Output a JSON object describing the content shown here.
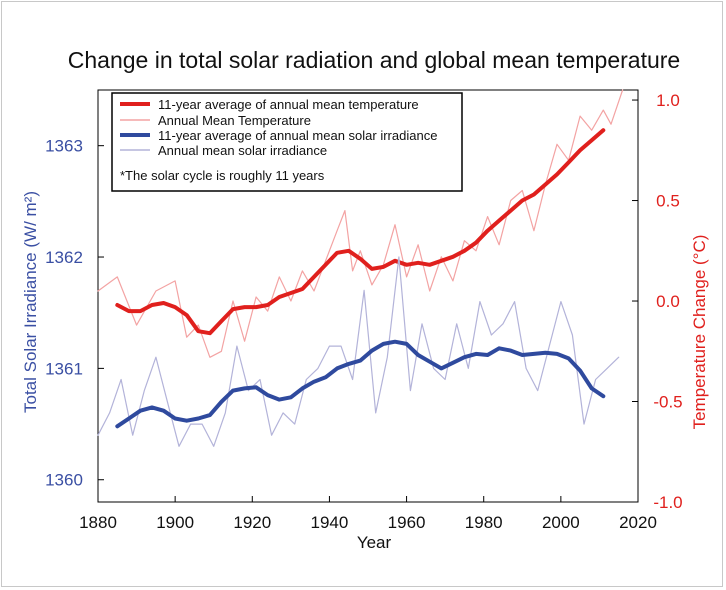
{
  "chart_data": {
    "type": "line",
    "title": "Change in total solar radiation and global mean temperature",
    "xlabel": "Year",
    "ylabel_left": "Total Solar Irradiance (W/ m²)",
    "ylabel_right": "Temperature Change (°C)",
    "xlim": [
      1880,
      2020
    ],
    "ylim_left": [
      1359.8,
      1363.5
    ],
    "ylim_right": [
      -1.0,
      1.05
    ],
    "x_ticks": [
      "1880",
      "1900",
      "1920",
      "1940",
      "1960",
      "1980",
      "2000",
      "2020"
    ],
    "left_ticks": [
      "1360",
      "1361",
      "1362",
      "1363"
    ],
    "right_ticks": [
      "-1.0",
      "-0.5",
      "0.0",
      "0.5",
      "1.0"
    ],
    "legend": {
      "position": "top-left",
      "entries": [
        {
          "label": "11-year average of annual mean temperature",
          "color": "#e0201d"
        },
        {
          "label": "Annual Mean Temperature",
          "color": "#f3a3a3"
        },
        {
          "label": "11-year average of annual mean solar irradiance",
          "color": "#2f4a9e"
        },
        {
          "label": "Annual mean solar irradiance",
          "color": "#b3b3d9"
        }
      ],
      "note": "*The solar cycle is roughly 11 years"
    },
    "series": [
      {
        "name": "Annual Mean Temperature",
        "axis": "right",
        "color": "#f3a3a3",
        "x": [
          1880,
          1885,
          1890,
          1895,
          1900,
          1903,
          1906,
          1909,
          1912,
          1915,
          1918,
          1921,
          1924,
          1927,
          1930,
          1933,
          1936,
          1939,
          1942,
          1944,
          1946,
          1948,
          1951,
          1954,
          1957,
          1960,
          1963,
          1966,
          1969,
          1972,
          1975,
          1978,
          1981,
          1984,
          1987,
          1990,
          1993,
          1996,
          1999,
          2002,
          2005,
          2008,
          2011,
          2013,
          2016
        ],
        "y": [
          0.05,
          0.12,
          -0.12,
          0.05,
          0.1,
          -0.18,
          -0.12,
          -0.28,
          -0.25,
          0.0,
          -0.2,
          0.02,
          -0.05,
          0.12,
          0.0,
          0.15,
          0.05,
          0.2,
          0.35,
          0.45,
          0.15,
          0.25,
          0.08,
          0.18,
          0.38,
          0.12,
          0.28,
          0.05,
          0.22,
          0.1,
          0.3,
          0.25,
          0.42,
          0.28,
          0.5,
          0.55,
          0.35,
          0.58,
          0.78,
          0.7,
          0.92,
          0.85,
          0.95,
          0.88,
          1.05
        ]
      },
      {
        "name": "11-year average of annual mean temperature",
        "axis": "right",
        "color": "#e0201d",
        "x": [
          1885,
          1888,
          1891,
          1894,
          1897,
          1900,
          1903,
          1906,
          1909,
          1912,
          1915,
          1918,
          1921,
          1924,
          1927,
          1930,
          1933,
          1936,
          1939,
          1942,
          1945,
          1948,
          1951,
          1954,
          1957,
          1960,
          1963,
          1966,
          1969,
          1972,
          1975,
          1978,
          1981,
          1984,
          1987,
          1990,
          1993,
          1996,
          1999,
          2002,
          2005,
          2008,
          2011
        ],
        "y": [
          -0.02,
          -0.05,
          -0.05,
          -0.02,
          -0.01,
          -0.03,
          -0.07,
          -0.15,
          -0.16,
          -0.1,
          -0.04,
          -0.03,
          -0.03,
          -0.02,
          0.02,
          0.04,
          0.06,
          0.12,
          0.18,
          0.24,
          0.25,
          0.21,
          0.16,
          0.17,
          0.2,
          0.18,
          0.19,
          0.18,
          0.2,
          0.22,
          0.25,
          0.29,
          0.35,
          0.4,
          0.45,
          0.5,
          0.53,
          0.58,
          0.63,
          0.69,
          0.75,
          0.8,
          0.85
        ]
      },
      {
        "name": "Annual mean solar irradiance",
        "axis": "left",
        "color": "#b3b3d9",
        "x": [
          1880,
          1883,
          1886,
          1889,
          1892,
          1895,
          1898,
          1901,
          1904,
          1907,
          1910,
          1913,
          1916,
          1919,
          1922,
          1925,
          1928,
          1931,
          1934,
          1937,
          1940,
          1943,
          1946,
          1949,
          1952,
          1955,
          1958,
          1961,
          1964,
          1967,
          1970,
          1973,
          1976,
          1979,
          1982,
          1985,
          1988,
          1991,
          1994,
          1997,
          2000,
          2003,
          2006,
          2009,
          2012,
          2015
        ],
        "y": [
          1360.4,
          1360.6,
          1360.9,
          1360.4,
          1360.8,
          1361.1,
          1360.7,
          1360.3,
          1360.5,
          1360.5,
          1360.3,
          1360.6,
          1361.2,
          1360.8,
          1360.9,
          1360.4,
          1360.6,
          1360.5,
          1360.9,
          1361.0,
          1361.2,
          1361.2,
          1360.9,
          1361.7,
          1360.6,
          1361.1,
          1362.0,
          1360.8,
          1361.4,
          1361.0,
          1360.9,
          1361.4,
          1361.0,
          1361.6,
          1361.3,
          1361.4,
          1361.6,
          1361.0,
          1360.8,
          1361.2,
          1361.6,
          1361.3,
          1360.5,
          1360.9,
          1361.0,
          1361.1
        ]
      },
      {
        "name": "11-year average of annual mean solar irradiance",
        "axis": "left",
        "color": "#2f4a9e",
        "x": [
          1885,
          1888,
          1891,
          1894,
          1897,
          1900,
          1903,
          1906,
          1909,
          1912,
          1915,
          1918,
          1921,
          1924,
          1927,
          1930,
          1933,
          1936,
          1939,
          1942,
          1945,
          1948,
          1951,
          1954,
          1957,
          1960,
          1963,
          1966,
          1969,
          1972,
          1975,
          1978,
          1981,
          1984,
          1987,
          1990,
          1993,
          1996,
          1999,
          2002,
          2005,
          2008,
          2011
        ],
        "y": [
          1360.48,
          1360.55,
          1360.62,
          1360.65,
          1360.62,
          1360.55,
          1360.53,
          1360.55,
          1360.58,
          1360.7,
          1360.8,
          1360.82,
          1360.83,
          1360.76,
          1360.72,
          1360.74,
          1360.82,
          1360.88,
          1360.92,
          1361.0,
          1361.04,
          1361.07,
          1361.16,
          1361.22,
          1361.24,
          1361.22,
          1361.12,
          1361.06,
          1361.0,
          1361.05,
          1361.1,
          1361.13,
          1361.12,
          1361.18,
          1361.16,
          1361.12,
          1361.13,
          1361.14,
          1361.13,
          1361.09,
          1360.98,
          1360.82,
          1360.75
        ]
      }
    ]
  }
}
